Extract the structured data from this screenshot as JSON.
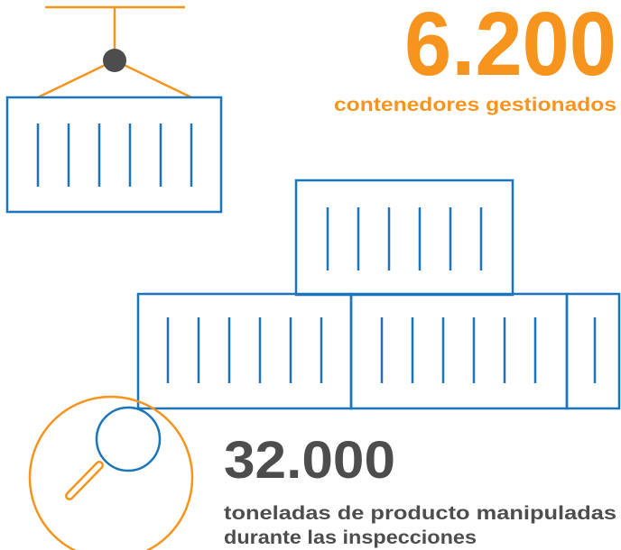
{
  "stats": [
    {
      "value": "6.200",
      "label": [
        "contenedores gestionados"
      ]
    },
    {
      "value": "32.000",
      "label": [
        "toneladas de producto manipuladas",
        "durante las inspecciones"
      ]
    }
  ]
}
